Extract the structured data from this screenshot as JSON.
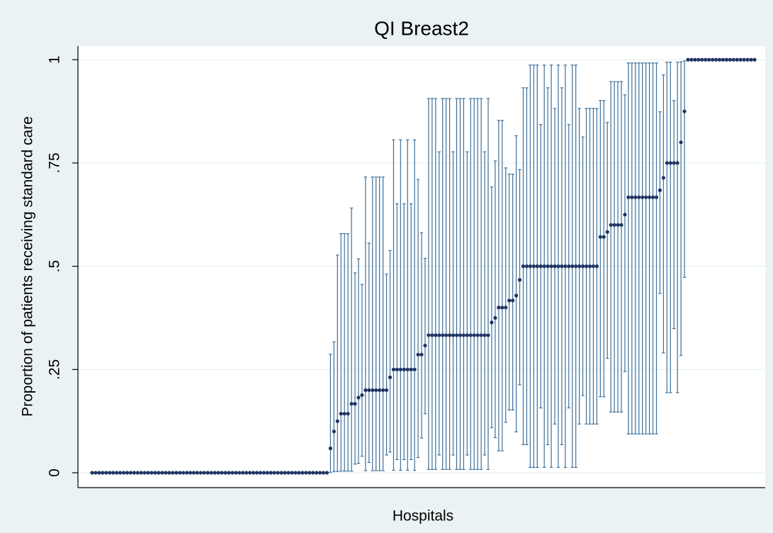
{
  "chart_data": {
    "type": "errorbar",
    "title": "QI Breast2",
    "x_label": "Hospitals",
    "y_label": "Proportion of patients receiving standard care",
    "ylim": [
      -0.036,
      1.033
    ],
    "yticks": [
      0,
      {
        "value": 0.25,
        "label": ".25"
      },
      {
        "value": 0.5,
        "label": ".5"
      },
      {
        "value": 0.75,
        "label": ".75"
      },
      1
    ],
    "grid": true,
    "color": "#1f3464",
    "bar_color": "#3d6f98",
    "values": [
      0,
      0,
      0,
      0,
      0,
      0,
      0,
      0,
      0,
      0,
      0,
      0,
      0,
      0,
      0,
      0,
      0,
      0,
      0,
      0,
      0,
      0,
      0,
      0,
      0,
      0,
      0,
      0,
      0,
      0,
      0,
      0,
      0,
      0,
      0,
      0,
      0,
      0,
      0,
      0,
      0,
      0,
      0,
      0,
      0,
      0,
      0,
      0,
      0,
      0,
      0,
      0,
      0,
      0,
      0,
      0,
      0,
      0,
      0,
      0,
      0,
      0,
      0,
      0,
      0,
      0,
      0,
      0,
      0.059,
      0.1,
      0.125,
      0.143,
      0.143,
      0.143,
      0.167,
      0.167,
      0.182,
      0.188,
      0.2,
      0.2,
      0.2,
      0.2,
      0.2,
      0.2,
      0.2,
      0.231,
      0.25,
      0.25,
      0.25,
      0.25,
      0.25,
      0.25,
      0.25,
      0.286,
      0.286,
      0.308,
      0.333,
      0.333,
      0.333,
      0.333,
      0.333,
      0.333,
      0.333,
      0.333,
      0.333,
      0.333,
      0.333,
      0.333,
      0.333,
      0.333,
      0.333,
      0.333,
      0.333,
      0.333,
      0.364,
      0.375,
      0.4,
      0.4,
      0.4,
      0.417,
      0.417,
      0.429,
      0.467,
      0.5,
      0.5,
      0.5,
      0.5,
      0.5,
      0.5,
      0.5,
      0.5,
      0.5,
      0.5,
      0.5,
      0.5,
      0.5,
      0.5,
      0.5,
      0.5,
      0.5,
      0.5,
      0.5,
      0.5,
      0.5,
      0.5,
      0.571,
      0.571,
      0.583,
      0.6,
      0.6,
      0.6,
      0.6,
      0.625,
      0.667,
      0.667,
      0.667,
      0.667,
      0.667,
      0.667,
      0.667,
      0.667,
      0.667,
      0.684,
      0.714,
      0.75,
      0.75,
      0.75,
      0.75,
      0.8,
      0.875,
      1,
      1,
      1,
      1,
      1,
      1,
      1,
      1,
      1,
      1,
      1,
      1,
      1,
      1,
      1,
      1,
      1,
      1,
      1,
      1
    ],
    "lower": [
      0,
      0,
      0,
      0,
      0,
      0,
      0,
      0,
      0,
      0,
      0,
      0,
      0,
      0,
      0,
      0,
      0,
      0,
      0,
      0,
      0,
      0,
      0,
      0,
      0,
      0,
      0,
      0,
      0,
      0,
      0,
      0,
      0,
      0,
      0,
      0,
      0,
      0,
      0,
      0,
      0,
      0,
      0,
      0,
      0,
      0,
      0,
      0,
      0,
      0,
      0,
      0,
      0,
      0,
      0,
      0,
      0,
      0,
      0,
      0,
      0,
      0,
      0,
      0,
      0,
      0,
      0,
      0,
      0.001,
      0.003,
      0.003,
      0.004,
      0.004,
      0.004,
      0.004,
      0.021,
      0.023,
      0.04,
      0.005,
      0.025,
      0.005,
      0.005,
      0.005,
      0.005,
      0.043,
      0.05,
      0.006,
      0.032,
      0.006,
      0.032,
      0.006,
      0.032,
      0.006,
      0.037,
      0.084,
      0.143,
      0.008,
      0.008,
      0.008,
      0.043,
      0.008,
      0.008,
      0.008,
      0.043,
      0.008,
      0.008,
      0.008,
      0.043,
      0.008,
      0.008,
      0.008,
      0.008,
      0.043,
      0.008,
      0.109,
      0.085,
      0.053,
      0.053,
      0.122,
      0.152,
      0.152,
      0.099,
      0.213,
      0.068,
      0.068,
      0.013,
      0.013,
      0.013,
      0.157,
      0.013,
      0.068,
      0.013,
      0.118,
      0.013,
      0.068,
      0.013,
      0.157,
      0.013,
      0.013,
      0.118,
      0.187,
      0.118,
      0.118,
      0.118,
      0.118,
      0.184,
      0.184,
      0.277,
      0.147,
      0.147,
      0.147,
      0.147,
      0.245,
      0.094,
      0.094,
      0.094,
      0.094,
      0.094,
      0.094,
      0.094,
      0.094,
      0.094,
      0.434,
      0.29,
      0.194,
      0.194,
      0.349,
      0.194,
      0.284,
      0.473,
      1,
      1,
      1,
      1,
      1,
      1,
      1,
      1,
      1,
      1,
      1,
      1,
      1,
      1,
      1,
      1,
      1,
      1,
      1,
      1
    ],
    "upper": [
      0,
      0,
      0,
      0,
      0,
      0,
      0,
      0,
      0,
      0,
      0,
      0,
      0,
      0,
      0,
      0,
      0,
      0,
      0,
      0,
      0,
      0,
      0,
      0,
      0,
      0,
      0,
      0,
      0,
      0,
      0,
      0,
      0,
      0,
      0,
      0,
      0,
      0,
      0,
      0,
      0,
      0,
      0,
      0,
      0,
      0,
      0,
      0,
      0,
      0,
      0,
      0,
      0,
      0,
      0,
      0,
      0,
      0,
      0,
      0,
      0,
      0,
      0,
      0,
      0,
      0,
      0,
      0,
      0.287,
      0.317,
      0.527,
      0.579,
      0.579,
      0.579,
      0.641,
      0.484,
      0.518,
      0.456,
      0.716,
      0.556,
      0.716,
      0.716,
      0.716,
      0.716,
      0.481,
      0.538,
      0.806,
      0.651,
      0.806,
      0.651,
      0.806,
      0.651,
      0.806,
      0.71,
      0.581,
      0.519,
      0.906,
      0.906,
      0.906,
      0.777,
      0.906,
      0.906,
      0.906,
      0.777,
      0.906,
      0.906,
      0.906,
      0.777,
      0.906,
      0.906,
      0.906,
      0.906,
      0.777,
      0.906,
      0.692,
      0.755,
      0.853,
      0.853,
      0.738,
      0.723,
      0.723,
      0.816,
      0.734,
      0.932,
      0.932,
      0.987,
      0.987,
      0.987,
      0.843,
      0.987,
      0.932,
      0.987,
      0.882,
      0.987,
      0.932,
      0.987,
      0.843,
      0.987,
      0.987,
      0.882,
      0.813,
      0.882,
      0.882,
      0.882,
      0.882,
      0.901,
      0.901,
      0.848,
      0.947,
      0.947,
      0.947,
      0.947,
      0.915,
      0.992,
      0.992,
      0.992,
      0.992,
      0.992,
      0.992,
      0.992,
      0.992,
      0.992,
      0.874,
      0.963,
      0.994,
      0.994,
      0.901,
      0.994,
      0.995,
      0.997,
      1,
      1,
      1,
      1,
      1,
      1,
      1,
      1,
      1,
      1,
      1,
      1,
      1,
      1,
      1,
      1,
      1,
      1,
      1,
      1
    ]
  }
}
